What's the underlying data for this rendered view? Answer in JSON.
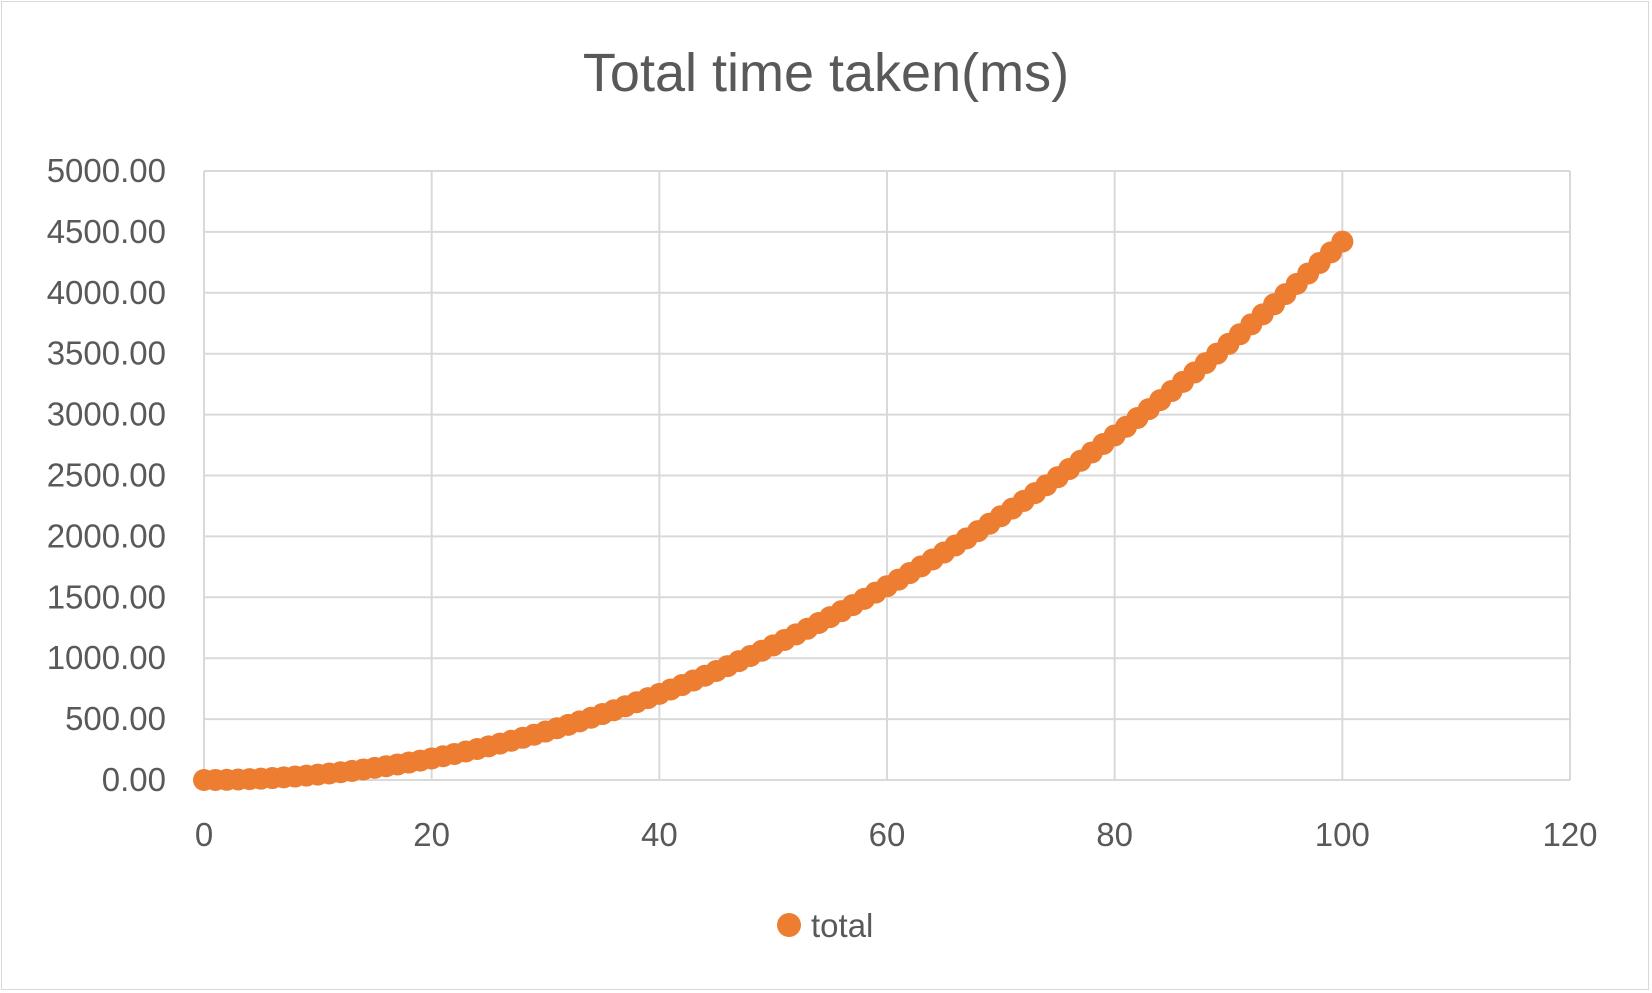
{
  "chart_data": {
    "type": "scatter",
    "title": "Total time taken(ms)",
    "xlabel": "",
    "ylabel": "",
    "xlim": [
      0,
      120
    ],
    "ylim": [
      0,
      5000
    ],
    "x_ticks": [
      "0",
      "20",
      "40",
      "60",
      "80",
      "100",
      "120"
    ],
    "y_ticks": [
      "0.00",
      "500.00",
      "1000.00",
      "1500.00",
      "2000.00",
      "2500.00",
      "3000.00",
      "3500.00",
      "4000.00",
      "4500.00",
      "5000.00"
    ],
    "grid": true,
    "legend_position": "bottom",
    "series": [
      {
        "name": "total",
        "color": "#ED7D31",
        "x": [
          0,
          1,
          2,
          3,
          4,
          5,
          6,
          7,
          8,
          9,
          10,
          11,
          12,
          13,
          14,
          15,
          16,
          17,
          18,
          19,
          20,
          21,
          22,
          23,
          24,
          25,
          26,
          27,
          28,
          29,
          30,
          31,
          32,
          33,
          34,
          35,
          36,
          37,
          38,
          39,
          40,
          41,
          42,
          43,
          44,
          45,
          46,
          47,
          48,
          49,
          50,
          51,
          52,
          53,
          54,
          55,
          56,
          57,
          58,
          59,
          60,
          61,
          62,
          63,
          64,
          65,
          66,
          67,
          68,
          69,
          70,
          71,
          72,
          73,
          74,
          75,
          76,
          77,
          78,
          79,
          80,
          81,
          82,
          83,
          84,
          85,
          86,
          87,
          88,
          89,
          90,
          91,
          92,
          93,
          94,
          95,
          96,
          97,
          98,
          99,
          100
        ],
        "y": [
          0.0,
          0.44,
          1.77,
          3.98,
          7.07,
          11.05,
          15.91,
          21.66,
          28.29,
          35.81,
          44.2,
          53.49,
          63.65,
          74.7,
          86.64,
          99.45,
          113.15,
          127.74,
          143.21,
          159.56,
          176.8,
          194.92,
          213.93,
          233.82,
          254.59,
          276.25,
          298.79,
          322.22,
          346.53,
          371.72,
          397.8,
          424.76,
          452.61,
          481.34,
          510.95,
          541.45,
          572.83,
          605.1,
          638.25,
          672.28,
          707.2,
          743.0,
          779.69,
          817.26,
          855.71,
          895.05,
          935.27,
          976.38,
          1018.37,
          1061.24,
          1105.0,
          1149.64,
          1195.17,
          1241.58,
          1288.87,
          1337.05,
          1386.11,
          1436.06,
          1486.89,
          1538.6,
          1591.2,
          1644.68,
          1699.05,
          1754.3,
          1810.43,
          1867.45,
          1925.35,
          1984.14,
          2043.81,
          2104.36,
          2165.8,
          2228.12,
          2291.33,
          2355.42,
          2420.39,
          2486.25,
          2552.99,
          2620.62,
          2689.13,
          2758.52,
          2828.8,
          2899.96,
          2972.01,
          3044.94,
          3118.75,
          3193.45,
          3269.03,
          3345.5,
          3422.85,
          3501.08,
          3580.2,
          3660.2,
          3741.09,
          3822.86,
          3905.51,
          3989.05,
          4073.47,
          4158.78,
          4244.97,
          4332.04,
          4420.0
        ]
      }
    ]
  }
}
